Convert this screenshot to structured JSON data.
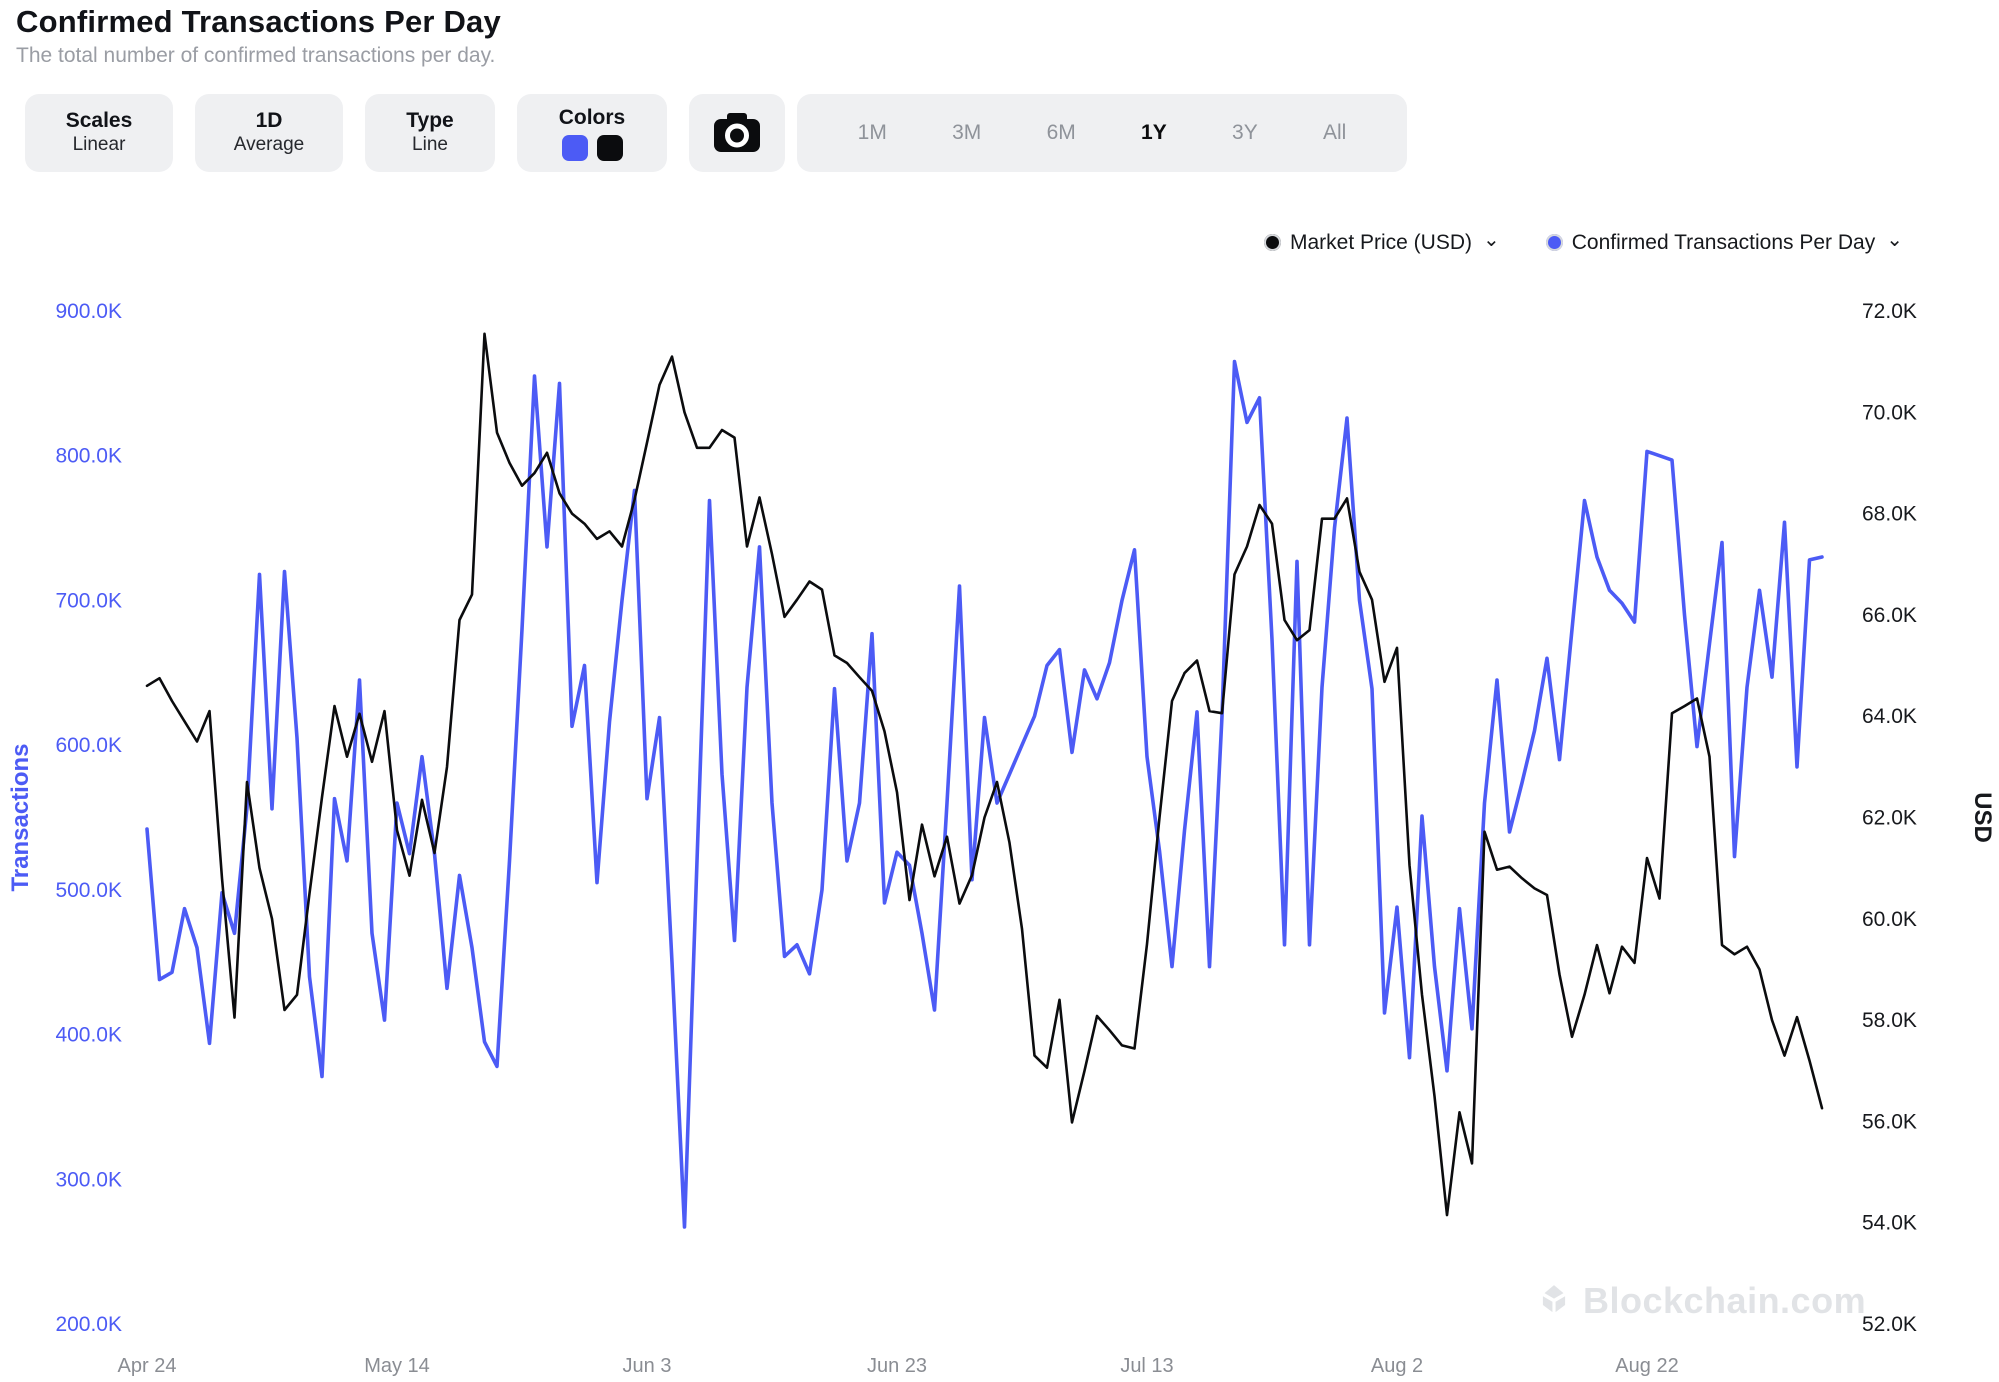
{
  "header": {
    "title": "Confirmed Transactions Per Day",
    "subtitle": "The total number of confirmed transactions per day."
  },
  "toolbar": {
    "scales": {
      "label": "Scales",
      "value": "Linear"
    },
    "interval": {
      "label": "1D",
      "value": "Average"
    },
    "type": {
      "label": "Type",
      "value": "Line"
    },
    "colors": {
      "label": "Colors",
      "swatches": [
        "#4c5bf5",
        "#0b0c0e"
      ]
    },
    "camera_icon": "camera-icon"
  },
  "time_ranges": {
    "options": [
      "1M",
      "3M",
      "6M",
      "1Y",
      "3Y",
      "All"
    ],
    "selected": "1Y"
  },
  "legend": [
    {
      "label": "Market Price (USD)",
      "color": "#0b0c0e",
      "chevron": "⌄"
    },
    {
      "label": "Confirmed Transactions Per Day",
      "color": "#4c5bf5",
      "chevron": "⌄"
    }
  ],
  "watermark": {
    "text": "Blockchain.com"
  },
  "chart_data": {
    "type": "line",
    "grid": false,
    "x_start_label": "Apr 24",
    "x_ticks": [
      {
        "label": "Apr 24",
        "day": 0
      },
      {
        "label": "May 14",
        "day": 20
      },
      {
        "label": "Jun 3",
        "day": 40
      },
      {
        "label": "Jun 23",
        "day": 60
      },
      {
        "label": "Jul 13",
        "day": 80
      },
      {
        "label": "Aug 2",
        "day": 100
      },
      {
        "label": "Aug 22",
        "day": 120
      }
    ],
    "left_axis": {
      "title": "Transactions",
      "color": "#4c5bf5",
      "unit": "K",
      "range": [
        200,
        900
      ],
      "ticks": [
        {
          "label": "900.0K",
          "value": 900
        },
        {
          "label": "800.0K",
          "value": 800
        },
        {
          "label": "700.0K",
          "value": 700
        },
        {
          "label": "600.0K",
          "value": 600
        },
        {
          "label": "500.0K",
          "value": 500
        },
        {
          "label": "400.0K",
          "value": 400
        },
        {
          "label": "300.0K",
          "value": 300
        },
        {
          "label": "200.0K",
          "value": 200
        }
      ]
    },
    "right_axis": {
      "title": "USD",
      "color": "#17191d",
      "unit": "K",
      "range": [
        52,
        72
      ],
      "ticks": [
        {
          "label": "72.0K",
          "value": 72
        },
        {
          "label": "70.0K",
          "value": 70
        },
        {
          "label": "68.0K",
          "value": 68
        },
        {
          "label": "66.0K",
          "value": 66
        },
        {
          "label": "64.0K",
          "value": 64
        },
        {
          "label": "62.0K",
          "value": 62
        },
        {
          "label": "60.0K",
          "value": 60
        },
        {
          "label": "58.0K",
          "value": 58
        },
        {
          "label": "56.0K",
          "value": 56
        },
        {
          "label": "54.0K",
          "value": 54
        },
        {
          "label": "52.0K",
          "value": 52
        }
      ]
    },
    "series": [
      {
        "name": "Confirmed Transactions Per Day",
        "axis": "left",
        "color": "#4c5bf5",
        "stroke_width": 3.6,
        "values_unit": "K transactions",
        "values": [
          542,
          438,
          443,
          487,
          460,
          394,
          498,
          470,
          557,
          718,
          556,
          720,
          605,
          440,
          371,
          563,
          520,
          645,
          470,
          410,
          560,
          525,
          592,
          525,
          432,
          510,
          460,
          395,
          378,
          520,
          680,
          855,
          737,
          850,
          613,
          655,
          505,
          616,
          700,
          776,
          563,
          619,
          450,
          267,
          520,
          769,
          580,
          465,
          640,
          737,
          560,
          454,
          462,
          442,
          500,
          639,
          520,
          560,
          677,
          491,
          526,
          517,
          470,
          417,
          560,
          710,
          507,
          619,
          560,
          580,
          600,
          620,
          655,
          666,
          595,
          652,
          632,
          657,
          700,
          735,
          592,
          527,
          447,
          541,
          623,
          447,
          620,
          865,
          823,
          840,
          673,
          462,
          727,
          462,
          640,
          750,
          826,
          700,
          639,
          415,
          488,
          384,
          551,
          447,
          375,
          487,
          404,
          560,
          645,
          540,
          574,
          610,
          660,
          590,
          680,
          769,
          730,
          707,
          698,
          685,
          803,
          800,
          797,
          690,
          599,
          670,
          740,
          523,
          640,
          707,
          647,
          754,
          585,
          728,
          730
        ]
      },
      {
        "name": "Market Price (USD)",
        "axis": "right",
        "color": "#0b0c0e",
        "stroke_width": 2.6,
        "values_unit": "K USD",
        "values": [
          64.6,
          64.75,
          64.3,
          63.9,
          63.5,
          64.1,
          60.8,
          58.05,
          62.7,
          61.0,
          60.0,
          58.2,
          58.5,
          60.5,
          62.4,
          64.2,
          63.2,
          64.05,
          63.1,
          64.1,
          61.75,
          60.85,
          62.35,
          61.3,
          63.0,
          65.9,
          66.4,
          71.55,
          69.6,
          69.0,
          68.55,
          68.8,
          69.2,
          68.4,
          68.0,
          67.8,
          67.5,
          67.65,
          67.35,
          68.27,
          69.4,
          70.54,
          71.1,
          70.0,
          69.3,
          69.3,
          69.65,
          69.5,
          67.35,
          68.32,
          67.2,
          65.96,
          66.3,
          66.66,
          66.5,
          65.2,
          65.05,
          64.77,
          64.5,
          63.7,
          62.5,
          60.37,
          61.86,
          60.84,
          61.62,
          60.3,
          60.86,
          62.0,
          62.7,
          61.5,
          59.8,
          57.3,
          57.06,
          58.4,
          55.98,
          57.0,
          58.08,
          57.8,
          57.5,
          57.44,
          59.5,
          62.0,
          64.3,
          64.85,
          65.1,
          64.1,
          64.06,
          66.8,
          67.35,
          68.17,
          67.8,
          65.9,
          65.5,
          65.7,
          67.9,
          67.9,
          68.3,
          66.85,
          66.3,
          64.68,
          65.35,
          61.06,
          58.5,
          56.5,
          54.15,
          56.18,
          55.17,
          61.72,
          60.97,
          61.03,
          60.8,
          60.6,
          60.47,
          58.9,
          57.67,
          58.5,
          59.48,
          58.53,
          59.45,
          59.13,
          61.2,
          60.4,
          64.06,
          64.2,
          64.35,
          63.2,
          59.48,
          59.3,
          59.45,
          59.0,
          58.0,
          57.3,
          58.06,
          57.2,
          56.26
        ]
      }
    ]
  }
}
